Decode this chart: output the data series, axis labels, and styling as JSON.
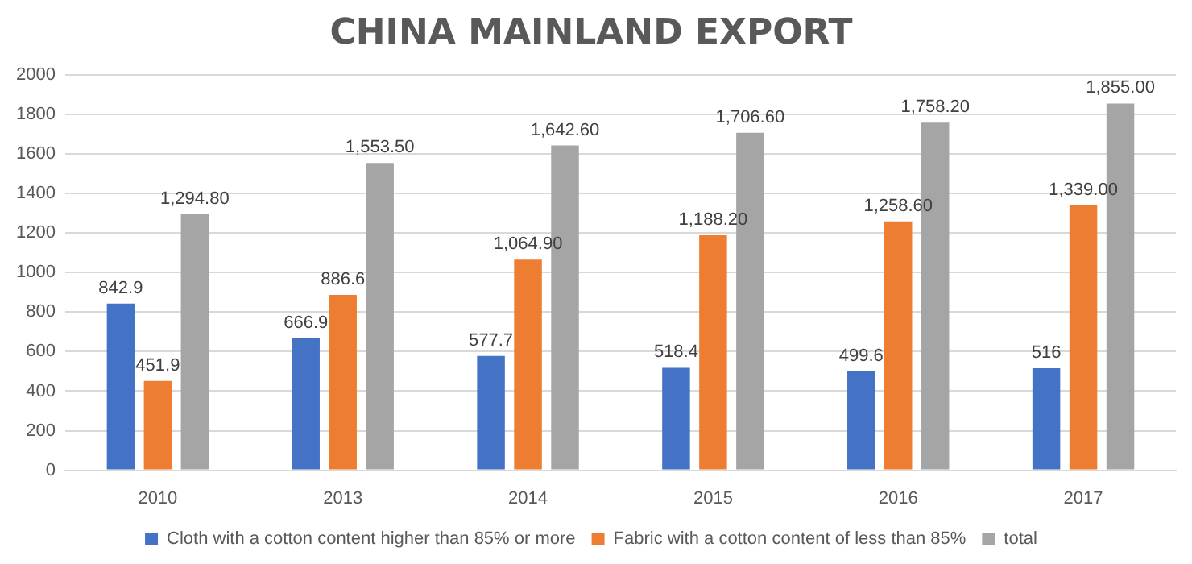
{
  "chart_data": {
    "type": "bar",
    "title": "CHINA MAINLAND EXPORT",
    "categories": [
      "2010",
      "2013",
      "2014",
      "2015",
      "2016",
      "2017"
    ],
    "series": [
      {
        "name": "Cloth with a cotton content higher than 85% or more",
        "color": "#4472c4",
        "values": [
          842.9,
          666.9,
          577.7,
          518.4,
          499.6,
          516
        ],
        "value_labels": [
          "842.9",
          "666.9",
          "577.7",
          "518.4",
          "499.6",
          "516"
        ]
      },
      {
        "name": "Fabric with a cotton content of less than 85%",
        "color": "#ed7d31",
        "values": [
          451.9,
          886.6,
          1064.9,
          1188.2,
          1258.6,
          1339
        ],
        "value_labels": [
          "451.9",
          "886.6",
          "1,064.90",
          "1,188.20",
          "1,258.60",
          "1,339.00"
        ]
      },
      {
        "name": "total",
        "color": "#a5a5a5",
        "values": [
          1294.8,
          1553.5,
          1642.6,
          1706.6,
          1758.2,
          1855
        ],
        "value_labels": [
          "1,294.80",
          "1,553.50",
          "1,642.60",
          "1,706.60",
          "1,758.20",
          "1,855.00"
        ]
      }
    ],
    "ylim": [
      0,
      2000
    ],
    "yticks": [
      0,
      200,
      400,
      600,
      800,
      1000,
      1200,
      1400,
      1600,
      1800,
      2000
    ],
    "grid": "y",
    "legend": "bottom"
  }
}
